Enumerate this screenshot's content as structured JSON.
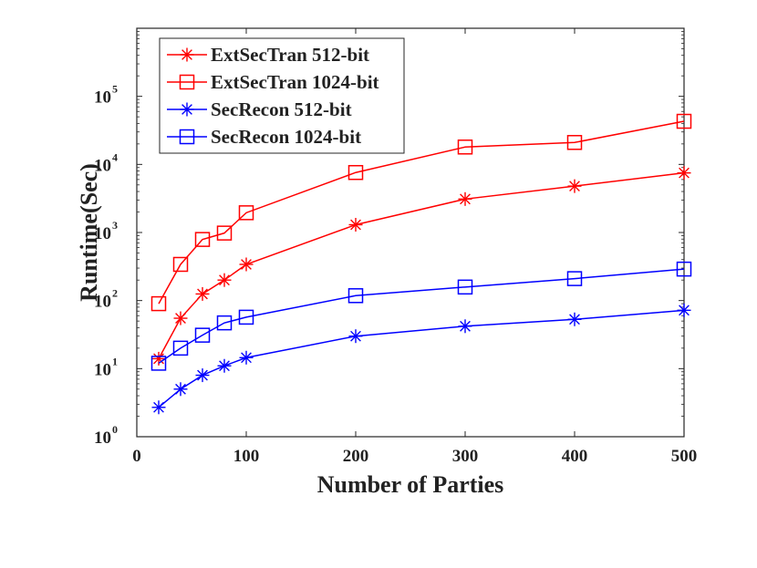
{
  "chart_data": {
    "type": "line",
    "title": "",
    "xlabel": "Number of Parties",
    "ylabel": "Runtime(Sec)",
    "xlim": [
      0,
      500
    ],
    "ylim": [
      1,
      1000000
    ],
    "yscale": "log",
    "x_ticks": [
      0,
      100,
      200,
      300,
      400,
      500
    ],
    "y_ticks": [
      {
        "base": "10",
        "exp": "0",
        "value": 1
      },
      {
        "base": "10",
        "exp": "1",
        "value": 10
      },
      {
        "base": "10",
        "exp": "2",
        "value": 100
      },
      {
        "base": "10",
        "exp": "3",
        "value": 1000
      },
      {
        "base": "10",
        "exp": "4",
        "value": 10000
      },
      {
        "base": "10",
        "exp": "5",
        "value": 100000
      }
    ],
    "grid": false,
    "legend_position": "top-left",
    "x": [
      20,
      40,
      60,
      80,
      100,
      200,
      300,
      400,
      500
    ],
    "series": [
      {
        "name": "ExtSecTran 512-bit",
        "color": "#ff0000",
        "marker": "star",
        "values": [
          14,
          55,
          125,
          200,
          340,
          1300,
          3100,
          4800,
          7500
        ]
      },
      {
        "name": "ExtSecTran 1024-bit",
        "color": "#ff0000",
        "marker": "square",
        "values": [
          90,
          340,
          790,
          980,
          1950,
          7600,
          18000,
          21000,
          43000
        ]
      },
      {
        "name": "SecRecon 512-bit",
        "color": "#0000ff",
        "marker": "star",
        "values": [
          2.7,
          5,
          8,
          11,
          14.5,
          30,
          42,
          53,
          72
        ]
      },
      {
        "name": "SecRecon 1024-bit",
        "color": "#0000ff",
        "marker": "square",
        "values": [
          12,
          20,
          31,
          47,
          57,
          118,
          158,
          210,
          290
        ]
      }
    ]
  }
}
